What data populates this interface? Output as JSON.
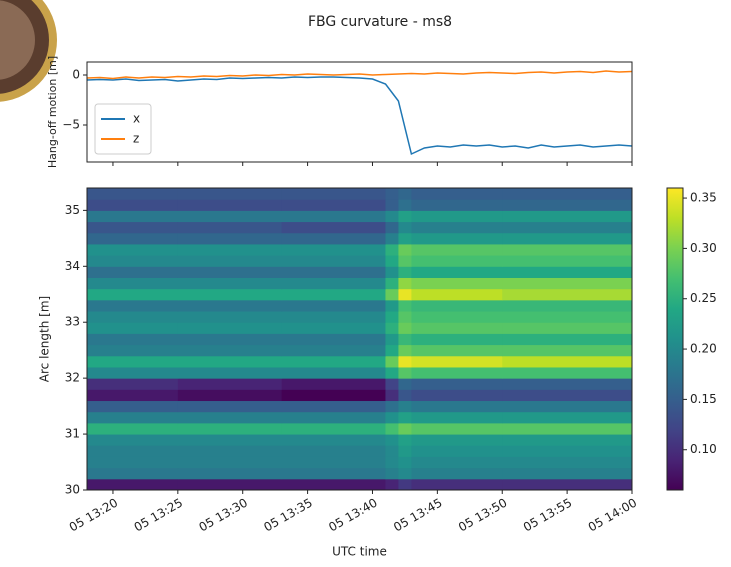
{
  "chart_data": [
    {
      "type": "line",
      "title": "FBG curvature - ms8",
      "ylabel": "Hang-off motion [m]",
      "x": [
        "05 13:18",
        "05 13:19",
        "05 13:20",
        "05 13:21",
        "05 13:22",
        "05 13:23",
        "05 13:24",
        "05 13:25",
        "05 13:26",
        "05 13:27",
        "05 13:28",
        "05 13:29",
        "05 13:30",
        "05 13:31",
        "05 13:32",
        "05 13:33",
        "05 13:34",
        "05 13:35",
        "05 13:36",
        "05 13:37",
        "05 13:38",
        "05 13:39",
        "05 13:40",
        "05 13:41",
        "05 13:42",
        "05 13:43",
        "05 13:44",
        "05 13:45",
        "05 13:46",
        "05 13:47",
        "05 13:48",
        "05 13:49",
        "05 13:50",
        "05 13:51",
        "05 13:52",
        "05 13:53",
        "05 13:54",
        "05 13:55",
        "05 13:56",
        "05 13:57",
        "05 13:58",
        "05 13:59",
        "05 14:00"
      ],
      "series": [
        {
          "name": "x",
          "color": "#1f77b4",
          "values": [
            -0.5,
            -0.45,
            -0.5,
            -0.4,
            -0.55,
            -0.5,
            -0.45,
            -0.6,
            -0.5,
            -0.4,
            -0.45,
            -0.3,
            -0.35,
            -0.3,
            -0.25,
            -0.3,
            -0.2,
            -0.25,
            -0.2,
            -0.2,
            -0.25,
            -0.3,
            -0.4,
            -0.9,
            -2.6,
            -7.9,
            -7.3,
            -7.1,
            -7.2,
            -7.0,
            -7.1,
            -7.0,
            -7.2,
            -7.1,
            -7.3,
            -7.0,
            -7.2,
            -7.1,
            -7.0,
            -7.2,
            -7.1,
            -7.0,
            -7.1
          ]
        },
        {
          "name": "z",
          "color": "#ff7f0e",
          "values": [
            -0.3,
            -0.25,
            -0.35,
            -0.2,
            -0.3,
            -0.2,
            -0.25,
            -0.15,
            -0.2,
            -0.1,
            -0.15,
            -0.05,
            -0.1,
            0.0,
            -0.05,
            0.05,
            0.0,
            0.1,
            0.05,
            0.0,
            0.05,
            0.1,
            0.0,
            0.05,
            0.1,
            0.15,
            0.1,
            0.2,
            0.15,
            0.1,
            0.2,
            0.25,
            0.2,
            0.15,
            0.25,
            0.3,
            0.2,
            0.3,
            0.35,
            0.25,
            0.4,
            0.3,
            0.35
          ]
        }
      ],
      "xlim": [
        "05 13:18",
        "05 14:00"
      ],
      "ylim": [
        -8.7,
        1.3
      ],
      "yticks": [
        {
          "value": -5,
          "label": "−5"
        },
        0
      ],
      "legend": "lower left"
    },
    {
      "type": "heatmap",
      "ylabel": "Arc length [m]",
      "xlabel": "UTC time",
      "colormap": "viridis",
      "x_edges": [
        "05 13:18",
        "05 13:25",
        "05 13:33",
        "05 13:41",
        "05 13:42",
        "05 13:43",
        "05 13:50",
        "05 14:00"
      ],
      "y_edges": [
        30.0,
        30.2,
        30.4,
        30.6,
        30.8,
        31.0,
        31.2,
        31.4,
        31.6,
        31.8,
        32.0,
        32.2,
        32.4,
        32.6,
        32.8,
        33.0,
        33.2,
        33.4,
        33.6,
        33.8,
        34.0,
        34.2,
        34.4,
        34.6,
        34.8,
        35.0,
        35.2,
        35.4
      ],
      "values": [
        [
          0.08,
          0.08,
          0.08,
          0.09,
          0.11,
          0.1,
          0.1
        ],
        [
          0.18,
          0.18,
          0.18,
          0.19,
          0.2,
          0.19,
          0.19
        ],
        [
          0.19,
          0.19,
          0.19,
          0.2,
          0.21,
          0.2,
          0.2
        ],
        [
          0.19,
          0.19,
          0.19,
          0.2,
          0.22,
          0.21,
          0.21
        ],
        [
          0.2,
          0.2,
          0.2,
          0.21,
          0.23,
          0.22,
          0.22
        ],
        [
          0.25,
          0.25,
          0.25,
          0.27,
          0.29,
          0.28,
          0.28
        ],
        [
          0.19,
          0.19,
          0.19,
          0.21,
          0.23,
          0.22,
          0.22
        ],
        [
          0.15,
          0.15,
          0.15,
          0.17,
          0.19,
          0.18,
          0.18
        ],
        [
          0.08,
          0.07,
          0.06,
          0.1,
          0.14,
          0.13,
          0.13
        ],
        [
          0.1,
          0.09,
          0.08,
          0.12,
          0.16,
          0.15,
          0.15
        ],
        [
          0.2,
          0.2,
          0.2,
          0.24,
          0.28,
          0.27,
          0.27
        ],
        [
          0.24,
          0.24,
          0.24,
          0.29,
          0.35,
          0.34,
          0.33
        ],
        [
          0.19,
          0.19,
          0.19,
          0.24,
          0.29,
          0.28,
          0.28
        ],
        [
          0.18,
          0.18,
          0.18,
          0.22,
          0.26,
          0.25,
          0.25
        ],
        [
          0.21,
          0.21,
          0.21,
          0.25,
          0.29,
          0.28,
          0.28
        ],
        [
          0.2,
          0.2,
          0.2,
          0.24,
          0.28,
          0.27,
          0.27
        ],
        [
          0.18,
          0.18,
          0.18,
          0.22,
          0.27,
          0.26,
          0.26
        ],
        [
          0.24,
          0.24,
          0.24,
          0.29,
          0.35,
          0.33,
          0.32
        ],
        [
          0.2,
          0.2,
          0.2,
          0.25,
          0.31,
          0.3,
          0.3
        ],
        [
          0.17,
          0.17,
          0.17,
          0.21,
          0.25,
          0.24,
          0.24
        ],
        [
          0.2,
          0.2,
          0.2,
          0.24,
          0.28,
          0.27,
          0.27
        ],
        [
          0.21,
          0.21,
          0.21,
          0.25,
          0.29,
          0.28,
          0.28
        ],
        [
          0.16,
          0.16,
          0.16,
          0.19,
          0.23,
          0.22,
          0.22
        ],
        [
          0.14,
          0.14,
          0.13,
          0.16,
          0.2,
          0.19,
          0.19
        ],
        [
          0.18,
          0.18,
          0.18,
          0.2,
          0.23,
          0.22,
          0.22
        ],
        [
          0.13,
          0.13,
          0.13,
          0.15,
          0.17,
          0.16,
          0.16
        ],
        [
          0.14,
          0.14,
          0.14,
          0.15,
          0.16,
          0.15,
          0.15
        ]
      ],
      "xlim": [
        "05 13:18",
        "05 14:00"
      ],
      "xticks": [
        "05 13:20",
        "05 13:25",
        "05 13:30",
        "05 13:35",
        "05 13:40",
        "05 13:45",
        "05 13:50",
        "05 13:55",
        "05 14:00"
      ],
      "ylim": [
        30,
        35.4
      ],
      "yticks": [
        30,
        31,
        32,
        33,
        34,
        35
      ],
      "clim": [
        0.06,
        0.36
      ],
      "cticks": [
        {
          "value": 0.1,
          "label": "0.10"
        },
        0.15,
        {
          "value": 0.2,
          "label": "0.20"
        },
        0.25,
        {
          "value": 0.3,
          "label": "0.30"
        },
        0.35
      ]
    }
  ]
}
